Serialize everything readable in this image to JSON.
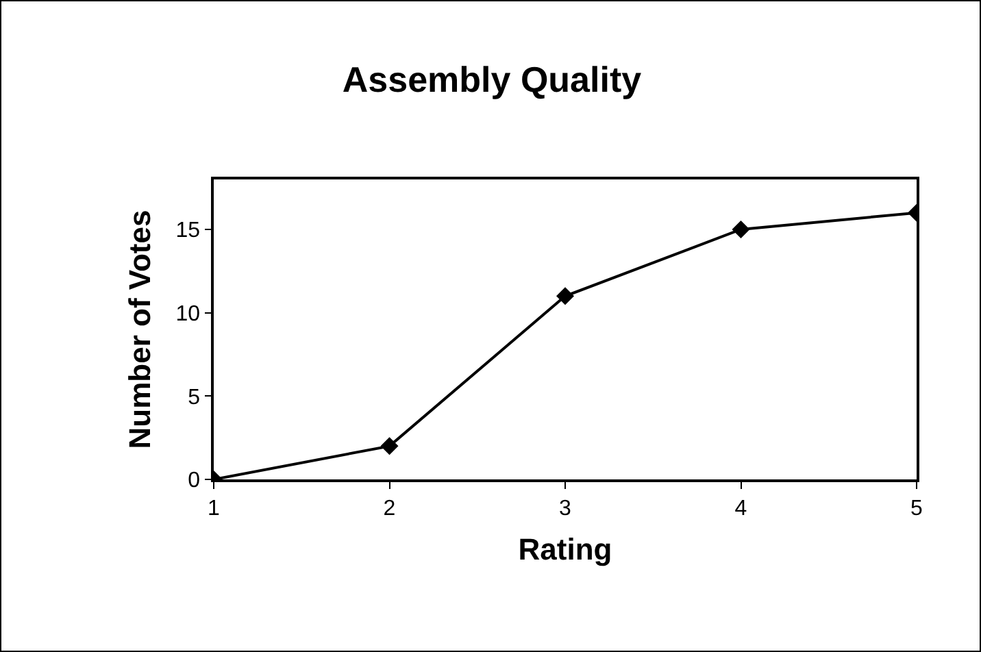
{
  "chart_data": {
    "type": "line",
    "title": "Assembly Quality",
    "xlabel": "Rating",
    "ylabel": "Number of Votes",
    "x": [
      1,
      2,
      3,
      4,
      5
    ],
    "series": [
      {
        "color": "#000000",
        "values": [
          0,
          2,
          11,
          15,
          16
        ]
      }
    ],
    "xlim": [
      1,
      5
    ],
    "xticks": [
      1,
      2,
      3,
      4,
      5
    ],
    "ylim": [
      0,
      18
    ],
    "yticks": [
      0,
      5,
      10,
      15
    ],
    "grid": false,
    "marker": "diamond",
    "line_style": "solid"
  }
}
